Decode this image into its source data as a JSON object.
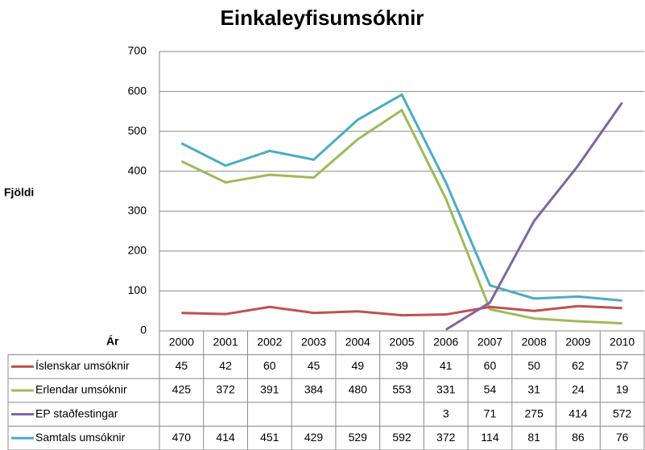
{
  "chart_data": {
    "type": "line",
    "title": "Einkaleyfisumsóknir",
    "y_label": "Fjöldi",
    "x_label": "Ár",
    "categories": [
      "2000",
      "2001",
      "2002",
      "2003",
      "2004",
      "2005",
      "2006",
      "2007",
      "2008",
      "2009",
      "2010"
    ],
    "series": [
      {
        "name": "Íslenskar umsóknir",
        "color": "#c0504d",
        "values": [
          45,
          42,
          60,
          45,
          49,
          39,
          41,
          60,
          50,
          62,
          57
        ]
      },
      {
        "name": "Erlendar umsóknir",
        "color": "#9bbb59",
        "values": [
          425,
          372,
          391,
          384,
          480,
          553,
          331,
          54,
          31,
          24,
          19
        ]
      },
      {
        "name": "EP staðfestingar",
        "color": "#8064a2",
        "values": [
          null,
          null,
          null,
          null,
          null,
          null,
          3,
          71,
          275,
          414,
          572
        ]
      },
      {
        "name": "Samtals umsóknir",
        "color": "#4bacc6",
        "values": [
          470,
          414,
          451,
          429,
          529,
          592,
          372,
          114,
          81,
          86,
          76
        ]
      }
    ],
    "ylim": [
      0,
      700
    ],
    "yticks": [
      0,
      100,
      200,
      300,
      400,
      500,
      600,
      700
    ],
    "grid": true
  }
}
